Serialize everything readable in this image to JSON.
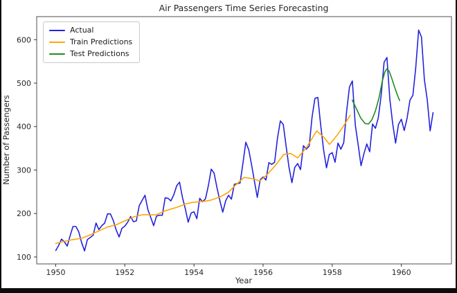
{
  "chart_data": {
    "type": "line",
    "title": "Air Passengers Time Series Forecasting",
    "xlabel": "Year",
    "ylabel": "Number of Passengers",
    "xlim": [
      1949.45,
      1961.45
    ],
    "ylim": [
      84,
      653
    ],
    "x_ticks": [
      1950,
      1952,
      1954,
      1956,
      1958,
      1960
    ],
    "y_ticks": [
      100,
      200,
      300,
      400,
      500,
      600
    ],
    "grid": false,
    "legend_position": "upper left",
    "series": [
      {
        "name": "Actual",
        "color": "#2222dd",
        "x_start": 1950,
        "x_step_years": 0.0833333,
        "values": [
          115,
          126,
          141,
          135,
          125,
          149,
          170,
          170,
          158,
          133,
          114,
          140,
          145,
          150,
          178,
          163,
          172,
          178,
          199,
          199,
          184,
          162,
          146,
          166,
          171,
          180,
          193,
          181,
          183,
          218,
          230,
          242,
          209,
          191,
          172,
          194,
          196,
          196,
          236,
          235,
          229,
          243,
          264,
          272,
          237,
          211,
          180,
          201,
          204,
          188,
          235,
          227,
          234,
          264,
          302,
          293,
          259,
          229,
          203,
          229,
          242,
          233,
          267,
          269,
          270,
          315,
          364,
          347,
          312,
          274,
          237,
          278,
          284,
          277,
          317,
          313,
          318,
          374,
          413,
          405,
          355,
          306,
          271,
          306,
          315,
          301,
          356,
          348,
          355,
          422,
          465,
          467,
          404,
          347,
          305,
          336,
          340,
          318,
          362,
          348,
          363,
          435,
          491,
          505,
          404,
          359,
          310,
          337,
          360,
          342,
          406,
          396,
          420,
          472,
          548,
          559,
          463,
          407,
          362,
          405,
          417,
          391,
          419,
          461,
          472,
          535,
          622,
          606,
          508,
          461,
          390,
          432
        ]
      },
      {
        "name": "Train Predictions",
        "color": "#ffa500",
        "points": [
          [
            1950.0,
            131
          ],
          [
            1950.25,
            136
          ],
          [
            1950.5,
            140
          ],
          [
            1950.75,
            143
          ],
          [
            1951.0,
            151
          ],
          [
            1951.25,
            160
          ],
          [
            1951.5,
            169
          ],
          [
            1951.75,
            174
          ],
          [
            1952.0,
            183
          ],
          [
            1952.25,
            192
          ],
          [
            1952.5,
            197
          ],
          [
            1952.9,
            197
          ],
          [
            1953.2,
            207
          ],
          [
            1953.5,
            214
          ],
          [
            1953.8,
            223
          ],
          [
            1954.0,
            226
          ],
          [
            1954.3,
            228
          ],
          [
            1954.5,
            231
          ],
          [
            1954.75,
            238
          ],
          [
            1955.0,
            249
          ],
          [
            1955.2,
            265
          ],
          [
            1955.45,
            283
          ],
          [
            1955.7,
            280
          ],
          [
            1955.9,
            275
          ],
          [
            1956.1,
            288
          ],
          [
            1956.35,
            310
          ],
          [
            1956.6,
            336
          ],
          [
            1956.8,
            338
          ],
          [
            1957.0,
            328
          ],
          [
            1957.25,
            351
          ],
          [
            1957.55,
            390
          ],
          [
            1957.75,
            376
          ],
          [
            1957.92,
            359
          ],
          [
            1958.15,
            381
          ],
          [
            1958.35,
            404
          ],
          [
            1958.52,
            426
          ]
        ]
      },
      {
        "name": "Test Predictions",
        "color": "#1f8b1f",
        "points": [
          [
            1958.58,
            461
          ],
          [
            1958.7,
            441
          ],
          [
            1958.83,
            419
          ],
          [
            1958.95,
            407
          ],
          [
            1959.05,
            406
          ],
          [
            1959.15,
            416
          ],
          [
            1959.25,
            436
          ],
          [
            1959.35,
            465
          ],
          [
            1959.45,
            505
          ],
          [
            1959.52,
            525
          ],
          [
            1959.58,
            533
          ],
          [
            1959.65,
            527
          ],
          [
            1959.72,
            512
          ],
          [
            1959.8,
            492
          ],
          [
            1959.88,
            474
          ],
          [
            1959.95,
            460
          ]
        ]
      }
    ]
  }
}
